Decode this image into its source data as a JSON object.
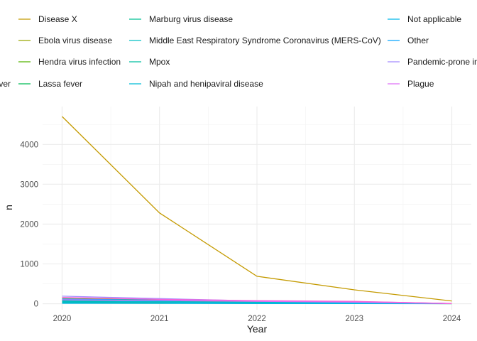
{
  "chart_data": {
    "type": "line",
    "title": "",
    "xlabel": "Year",
    "ylabel": "n",
    "x": [
      2020,
      2021,
      2022,
      2023,
      2024
    ],
    "xlim": [
      2019.8,
      2024.2
    ],
    "ylim": [
      -150,
      4950
    ],
    "yticks": [
      0,
      1000,
      2000,
      3000,
      4000
    ],
    "grid": true,
    "legend_position": "top",
    "series": [
      {
        "name": "Disease X",
        "color": "#C49A00",
        "values": [
          4700,
          2280,
          690,
          350,
          70
        ]
      },
      {
        "name": "Ebola virus disease",
        "color": "#99A800",
        "values": [
          130,
          100,
          60,
          40,
          5
        ]
      },
      {
        "name": "Hendra virus infection",
        "color": "#53B400",
        "values": [
          20,
          15,
          10,
          8,
          2
        ]
      },
      {
        "name": "Lassa fever",
        "color": "#00BC56",
        "values": [
          60,
          50,
          40,
          30,
          5
        ]
      },
      {
        "name": "Marburg virus disease",
        "color": "#00C094",
        "values": [
          40,
          35,
          30,
          25,
          3
        ]
      },
      {
        "name": "Middle East Respiratory Syndrome Coronavirus (MERS-CoV)",
        "color": "#00BFC4",
        "values": [
          80,
          60,
          45,
          35,
          5
        ]
      },
      {
        "name": "Mpox",
        "color": "#00BFA0",
        "values": [
          30,
          40,
          50,
          40,
          5
        ]
      },
      {
        "name": "Nipah and henipaviral disease",
        "color": "#00BCD8",
        "values": [
          50,
          40,
          30,
          25,
          3
        ]
      },
      {
        "name": "Not applicable",
        "color": "#00B6EB",
        "values": [
          10,
          8,
          6,
          5,
          1
        ]
      },
      {
        "name": "Other",
        "color": "#06A4FF",
        "values": [
          120,
          90,
          70,
          50,
          5
        ]
      },
      {
        "name": "Pandemic-prone in",
        "color": "#A58AFF",
        "values": [
          190,
          130,
          70,
          55,
          8
        ]
      },
      {
        "name": "Plague",
        "color": "#DF70F8",
        "values": [
          100,
          80,
          60,
          40,
          4
        ]
      },
      {
        "name": "ver",
        "color": "#FB61D7",
        "values": [
          160,
          110,
          80,
          60,
          6
        ]
      }
    ],
    "legend_columns": [
      [
        "Disease X",
        "Ebola virus disease",
        "Hendra virus infection",
        "Lassa fever"
      ],
      [
        "Marburg virus disease",
        "Middle East Respiratory Syndrome Coronavirus (MERS-CoV)",
        "Mpox",
        "Nipah and henipaviral disease"
      ],
      [
        "Not applicable",
        "Other",
        "Pandemic-prone in",
        "Plague"
      ]
    ],
    "legend_cutoff_left": [
      "ver"
    ]
  }
}
